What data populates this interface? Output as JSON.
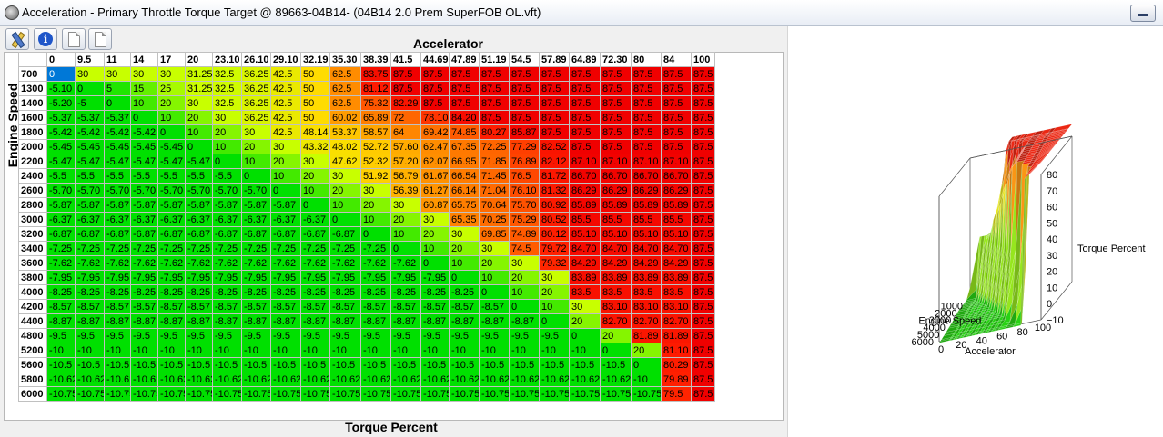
{
  "window": {
    "title": "Acceleration - Primary Throttle Torque Target @ 89663-04B14- (04B14 2.0 Prem SuperFOB OL.vft)"
  },
  "toolbar": {
    "buttons": [
      {
        "name": "tools-icon"
      },
      {
        "name": "info-icon",
        "glyph": "i"
      },
      {
        "name": "new-document-icon"
      },
      {
        "name": "document-icon"
      }
    ]
  },
  "table": {
    "x_title": "Accelerator",
    "y_title": "Engine Speed",
    "z_title": "Torque Percent",
    "columns": [
      "0",
      "9.5",
      "11",
      "14",
      "17",
      "20",
      "23.10",
      "26.10",
      "29.10",
      "32.19",
      "35.30",
      "38.39",
      "41.5",
      "44.69",
      "47.89",
      "51.19",
      "54.5",
      "57.89",
      "64.89",
      "72.30",
      "80",
      "84",
      "100"
    ],
    "rows": [
      {
        "rpm": "700",
        "values": [
          "0",
          "30",
          "30",
          "30",
          "30",
          "31.25",
          "32.5",
          "36.25",
          "42.5",
          "50",
          "62.5",
          "83.75",
          "87.5",
          "87.5",
          "87.5",
          "87.5",
          "87.5",
          "87.5",
          "87.5",
          "87.5",
          "87.5",
          "87.5",
          "87.5"
        ]
      },
      {
        "rpm": "1300",
        "values": [
          "-5.10",
          "0",
          "5",
          "15",
          "25",
          "31.25",
          "32.5",
          "36.25",
          "42.5",
          "50",
          "62.5",
          "81.12",
          "87.5",
          "87.5",
          "87.5",
          "87.5",
          "87.5",
          "87.5",
          "87.5",
          "87.5",
          "87.5",
          "87.5",
          "87.5"
        ]
      },
      {
        "rpm": "1400",
        "values": [
          "-5.20",
          "-5",
          "0",
          "10",
          "20",
          "30",
          "32.5",
          "36.25",
          "42.5",
          "50",
          "62.5",
          "75.32",
          "82.29",
          "87.5",
          "87.5",
          "87.5",
          "87.5",
          "87.5",
          "87.5",
          "87.5",
          "87.5",
          "87.5",
          "87.5"
        ]
      },
      {
        "rpm": "1600",
        "values": [
          "-5.37",
          "-5.37",
          "-5.37",
          "0",
          "10",
          "20",
          "30",
          "36.25",
          "42.5",
          "50",
          "60.02",
          "65.89",
          "72",
          "78.10",
          "84.20",
          "87.5",
          "87.5",
          "87.5",
          "87.5",
          "87.5",
          "87.5",
          "87.5",
          "87.5"
        ]
      },
      {
        "rpm": "1800",
        "values": [
          "-5.42",
          "-5.42",
          "-5.42",
          "-5.42",
          "0",
          "10",
          "20",
          "30",
          "42.5",
          "48.14",
          "53.37",
          "58.57",
          "64",
          "69.42",
          "74.85",
          "80.27",
          "85.87",
          "87.5",
          "87.5",
          "87.5",
          "87.5",
          "87.5",
          "87.5"
        ]
      },
      {
        "rpm": "2000",
        "values": [
          "-5.45",
          "-5.45",
          "-5.45",
          "-5.45",
          "-5.45",
          "0",
          "10",
          "20",
          "30",
          "43.32",
          "48.02",
          "52.72",
          "57.60",
          "62.47",
          "67.35",
          "72.25",
          "77.29",
          "82.52",
          "87.5",
          "87.5",
          "87.5",
          "87.5",
          "87.5"
        ]
      },
      {
        "rpm": "2200",
        "values": [
          "-5.47",
          "-5.47",
          "-5.47",
          "-5.47",
          "-5.47",
          "-5.47",
          "0",
          "10",
          "20",
          "30",
          "47.62",
          "52.32",
          "57.20",
          "62.07",
          "66.95",
          "71.85",
          "76.89",
          "82.12",
          "87.10",
          "87.10",
          "87.10",
          "87.10",
          "87.5"
        ]
      },
      {
        "rpm": "2400",
        "values": [
          "-5.5",
          "-5.5",
          "-5.5",
          "-5.5",
          "-5.5",
          "-5.5",
          "-5.5",
          "0",
          "10",
          "20",
          "30",
          "51.92",
          "56.79",
          "61.67",
          "66.54",
          "71.45",
          "76.5",
          "81.72",
          "86.70",
          "86.70",
          "86.70",
          "86.70",
          "87.5"
        ]
      },
      {
        "rpm": "2600",
        "values": [
          "-5.70",
          "-5.70",
          "-5.70",
          "-5.70",
          "-5.70",
          "-5.70",
          "-5.70",
          "-5.70",
          "0",
          "10",
          "20",
          "30",
          "56.39",
          "61.27",
          "66.14",
          "71.04",
          "76.10",
          "81.32",
          "86.29",
          "86.29",
          "86.29",
          "86.29",
          "87.5"
        ]
      },
      {
        "rpm": "2800",
        "values": [
          "-5.87",
          "-5.87",
          "-5.87",
          "-5.87",
          "-5.87",
          "-5.87",
          "-5.87",
          "-5.87",
          "-5.87",
          "0",
          "10",
          "20",
          "30",
          "60.87",
          "65.75",
          "70.64",
          "75.70",
          "80.92",
          "85.89",
          "85.89",
          "85.89",
          "85.89",
          "87.5"
        ]
      },
      {
        "rpm": "3000",
        "values": [
          "-6.37",
          "-6.37",
          "-6.37",
          "-6.37",
          "-6.37",
          "-6.37",
          "-6.37",
          "-6.37",
          "-6.37",
          "-6.37",
          "0",
          "10",
          "20",
          "30",
          "65.35",
          "70.25",
          "75.29",
          "80.52",
          "85.5",
          "85.5",
          "85.5",
          "85.5",
          "87.5"
        ]
      },
      {
        "rpm": "3200",
        "values": [
          "-6.87",
          "-6.87",
          "-6.87",
          "-6.87",
          "-6.87",
          "-6.87",
          "-6.87",
          "-6.87",
          "-6.87",
          "-6.87",
          "-6.87",
          "0",
          "10",
          "20",
          "30",
          "69.85",
          "74.89",
          "80.12",
          "85.10",
          "85.10",
          "85.10",
          "85.10",
          "87.5"
        ]
      },
      {
        "rpm": "3400",
        "values": [
          "-7.25",
          "-7.25",
          "-7.25",
          "-7.25",
          "-7.25",
          "-7.25",
          "-7.25",
          "-7.25",
          "-7.25",
          "-7.25",
          "-7.25",
          "-7.25",
          "0",
          "10",
          "20",
          "30",
          "74.5",
          "79.72",
          "84.70",
          "84.70",
          "84.70",
          "84.70",
          "87.5"
        ]
      },
      {
        "rpm": "3600",
        "values": [
          "-7.62",
          "-7.62",
          "-7.62",
          "-7.62",
          "-7.62",
          "-7.62",
          "-7.62",
          "-7.62",
          "-7.62",
          "-7.62",
          "-7.62",
          "-7.62",
          "-7.62",
          "0",
          "10",
          "20",
          "30",
          "79.32",
          "84.29",
          "84.29",
          "84.29",
          "84.29",
          "87.5"
        ]
      },
      {
        "rpm": "3800",
        "values": [
          "-7.95",
          "-7.95",
          "-7.95",
          "-7.95",
          "-7.95",
          "-7.95",
          "-7.95",
          "-7.95",
          "-7.95",
          "-7.95",
          "-7.95",
          "-7.95",
          "-7.95",
          "-7.95",
          "0",
          "10",
          "20",
          "30",
          "83.89",
          "83.89",
          "83.89",
          "83.89",
          "87.5"
        ]
      },
      {
        "rpm": "4000",
        "values": [
          "-8.25",
          "-8.25",
          "-8.25",
          "-8.25",
          "-8.25",
          "-8.25",
          "-8.25",
          "-8.25",
          "-8.25",
          "-8.25",
          "-8.25",
          "-8.25",
          "-8.25",
          "-8.25",
          "-8.25",
          "0",
          "10",
          "20",
          "83.5",
          "83.5",
          "83.5",
          "83.5",
          "87.5"
        ]
      },
      {
        "rpm": "4200",
        "values": [
          "-8.57",
          "-8.57",
          "-8.57",
          "-8.57",
          "-8.57",
          "-8.57",
          "-8.57",
          "-8.57",
          "-8.57",
          "-8.57",
          "-8.57",
          "-8.57",
          "-8.57",
          "-8.57",
          "-8.57",
          "-8.57",
          "0",
          "10",
          "30",
          "83.10",
          "83.10",
          "83.10",
          "87.5"
        ]
      },
      {
        "rpm": "4400",
        "values": [
          "-8.87",
          "-8.87",
          "-8.87",
          "-8.87",
          "-8.87",
          "-8.87",
          "-8.87",
          "-8.87",
          "-8.87",
          "-8.87",
          "-8.87",
          "-8.87",
          "-8.87",
          "-8.87",
          "-8.87",
          "-8.87",
          "-8.87",
          "0",
          "20",
          "82.70",
          "82.70",
          "82.70",
          "87.5"
        ]
      },
      {
        "rpm": "4800",
        "values": [
          "-9.5",
          "-9.5",
          "-9.5",
          "-9.5",
          "-9.5",
          "-9.5",
          "-9.5",
          "-9.5",
          "-9.5",
          "-9.5",
          "-9.5",
          "-9.5",
          "-9.5",
          "-9.5",
          "-9.5",
          "-9.5",
          "-9.5",
          "-9.5",
          "0",
          "20",
          "81.89",
          "81.89",
          "87.5"
        ]
      },
      {
        "rpm": "5200",
        "values": [
          "-10",
          "-10",
          "-10",
          "-10",
          "-10",
          "-10",
          "-10",
          "-10",
          "-10",
          "-10",
          "-10",
          "-10",
          "-10",
          "-10",
          "-10",
          "-10",
          "-10",
          "-10",
          "-10",
          "0",
          "20",
          "81.10",
          "87.5"
        ]
      },
      {
        "rpm": "5600",
        "values": [
          "-10.5",
          "-10.5",
          "-10.5",
          "-10.5",
          "-10.5",
          "-10.5",
          "-10.5",
          "-10.5",
          "-10.5",
          "-10.5",
          "-10.5",
          "-10.5",
          "-10.5",
          "-10.5",
          "-10.5",
          "-10.5",
          "-10.5",
          "-10.5",
          "-10.5",
          "-10.5",
          "0",
          "80.29",
          "87.5"
        ]
      },
      {
        "rpm": "5800",
        "values": [
          "-10.62",
          "-10.62",
          "-10.62",
          "-10.62",
          "-10.62",
          "-10.62",
          "-10.62",
          "-10.62",
          "-10.62",
          "-10.62",
          "-10.62",
          "-10.62",
          "-10.62",
          "-10.62",
          "-10.62",
          "-10.62",
          "-10.62",
          "-10.62",
          "-10.62",
          "-10.62",
          "-10",
          "79.89",
          "87.5"
        ]
      },
      {
        "rpm": "6000",
        "values": [
          "-10.75",
          "-10.75",
          "-10.75",
          "-10.75",
          "-10.75",
          "-10.75",
          "-10.75",
          "-10.75",
          "-10.75",
          "-10.75",
          "-10.75",
          "-10.75",
          "-10.75",
          "-10.75",
          "-10.75",
          "-10.75",
          "-10.75",
          "-10.75",
          "-10.75",
          "-10.75",
          "-10.75",
          "79.5",
          "87.5"
        ]
      }
    ],
    "selected_cell": "0",
    "colors": {
      "low": "#00ff00",
      "mid": "#ffff00",
      "orange": "#ff8c00",
      "high": "#ff0000",
      "selected": "#0078d7"
    }
  },
  "surface_plot": {
    "y_axis_label": "Engine Speed",
    "x_axis_label": "Accelerator",
    "z_axis_label": "Torque Percent",
    "y_ticks": [
      "1000",
      "2000",
      "3000",
      "4000",
      "5000",
      "6000"
    ],
    "x_ticks": [
      "0",
      "20",
      "40",
      "60",
      "80",
      "100"
    ],
    "z_ticks": [
      "80",
      "70",
      "60",
      "50",
      "40",
      "30",
      "20",
      "10",
      "0",
      "−10"
    ]
  }
}
